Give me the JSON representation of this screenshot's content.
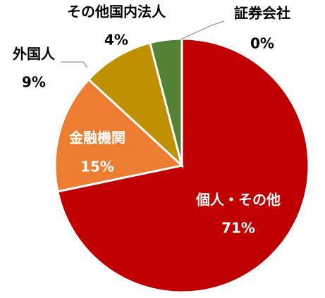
{
  "chart_data": {
    "type": "pie",
    "categories": [
      "個人・その他",
      "金融機関",
      "外国人",
      "その他国内法人",
      "証券会社"
    ],
    "values": [
      71,
      15,
      9,
      4,
      0
    ],
    "value_labels": [
      "71%",
      "15%",
      "9%",
      "4%",
      "0%"
    ],
    "colors": [
      "#c00000",
      "#ed7d31",
      "#bf9000",
      "#548235",
      "#a5a5a5"
    ]
  }
}
